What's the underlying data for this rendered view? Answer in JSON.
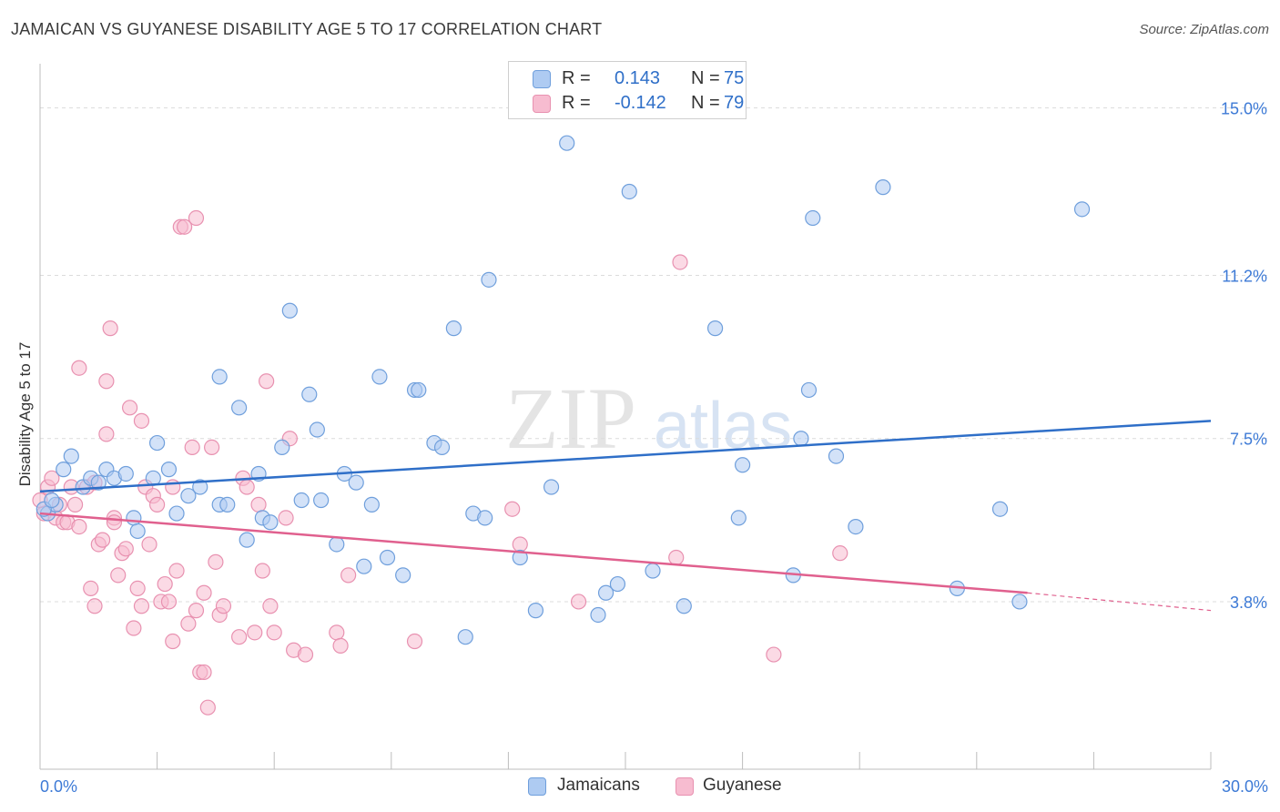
{
  "header": {
    "title": "JAMAICAN VS GUYANESE DISABILITY AGE 5 TO 17 CORRELATION CHART",
    "source": "Source: ZipAtlas.com"
  },
  "watermark": {
    "zip": "ZIP",
    "atlas": "atlas"
  },
  "legend": {
    "items": [
      {
        "r_label": "R =",
        "r_value": "0.143",
        "n_label": "N =",
        "n_value": "75",
        "color": "#aecbf2"
      },
      {
        "r_label": "R =",
        "r_value": "-0.142",
        "n_label": "N =",
        "n_value": "79",
        "color": "#f7bcd0"
      }
    ]
  },
  "colors": {
    "jamaicans_fill": "#aecbf2",
    "jamaicans_stroke": "#6f9fdc",
    "jamaicans_line": "#2f6fc8",
    "guyanese_fill": "#f7bcd0",
    "guyanese_stroke": "#e891b0",
    "guyanese_line": "#e0608e",
    "tick_label": "#3d7ad6"
  },
  "chart_data": {
    "type": "scatter",
    "title": "JAMAICAN VS GUYANESE DISABILITY AGE 5 TO 17 CORRELATION CHART",
    "xlabel": "",
    "ylabel": "Disability Age 5 to 17",
    "xlim": [
      0,
      30
    ],
    "ylim": [
      0,
      16.0
    ],
    "x_tick_labels": [
      "0.0%",
      "30.0%"
    ],
    "y_ticks": [
      3.8,
      7.5,
      11.2,
      15.0
    ],
    "y_tick_labels": [
      "3.8%",
      "7.5%",
      "11.2%",
      "15.0%"
    ],
    "grid": "horizontal dashed",
    "legend_position": "top-center",
    "series": [
      {
        "name": "Jamaicans",
        "r": 0.143,
        "n": 75,
        "trend": {
          "x": [
            0,
            30
          ],
          "y": [
            6.3,
            7.9
          ]
        },
        "points": [
          [
            0.2,
            5.8
          ],
          [
            0.4,
            6.0
          ],
          [
            0.6,
            6.8
          ],
          [
            0.8,
            7.1
          ],
          [
            1.1,
            6.4
          ],
          [
            1.3,
            6.6
          ],
          [
            1.5,
            6.5
          ],
          [
            1.7,
            6.8
          ],
          [
            1.9,
            6.6
          ],
          [
            2.2,
            6.7
          ],
          [
            2.4,
            5.7
          ],
          [
            2.5,
            5.4
          ],
          [
            2.9,
            6.6
          ],
          [
            3.0,
            7.4
          ],
          [
            3.3,
            6.8
          ],
          [
            3.5,
            5.8
          ],
          [
            3.8,
            6.2
          ],
          [
            4.1,
            6.4
          ],
          [
            4.6,
            6.0
          ],
          [
            4.6,
            8.9
          ],
          [
            4.8,
            6.0
          ],
          [
            5.1,
            8.2
          ],
          [
            5.3,
            5.2
          ],
          [
            5.6,
            6.7
          ],
          [
            5.7,
            5.7
          ],
          [
            5.9,
            5.6
          ],
          [
            6.2,
            7.3
          ],
          [
            6.4,
            10.4
          ],
          [
            6.7,
            6.1
          ],
          [
            6.9,
            8.5
          ],
          [
            7.1,
            7.7
          ],
          [
            7.2,
            6.1
          ],
          [
            7.6,
            5.1
          ],
          [
            7.8,
            6.7
          ],
          [
            8.1,
            6.5
          ],
          [
            8.3,
            4.6
          ],
          [
            8.5,
            6.0
          ],
          [
            8.7,
            8.9
          ],
          [
            8.9,
            4.8
          ],
          [
            9.3,
            4.4
          ],
          [
            9.6,
            8.6
          ],
          [
            9.7,
            8.6
          ],
          [
            10.1,
            7.4
          ],
          [
            10.3,
            7.3
          ],
          [
            10.6,
            10.0
          ],
          [
            10.9,
            3.0
          ],
          [
            11.1,
            5.8
          ],
          [
            11.4,
            5.7
          ],
          [
            11.5,
            11.1
          ],
          [
            12.3,
            4.8
          ],
          [
            12.7,
            3.6
          ],
          [
            13.1,
            6.4
          ],
          [
            13.5,
            14.2
          ],
          [
            14.3,
            3.5
          ],
          [
            14.5,
            4.0
          ],
          [
            14.8,
            4.2
          ],
          [
            15.1,
            13.1
          ],
          [
            15.7,
            4.5
          ],
          [
            16.5,
            3.7
          ],
          [
            17.3,
            10.0
          ],
          [
            17.9,
            5.7
          ],
          [
            18.0,
            6.9
          ],
          [
            19.3,
            4.4
          ],
          [
            19.5,
            7.5
          ],
          [
            19.7,
            8.6
          ],
          [
            19.8,
            12.5
          ],
          [
            20.4,
            7.1
          ],
          [
            20.9,
            5.5
          ],
          [
            21.6,
            13.2
          ],
          [
            23.5,
            4.1
          ],
          [
            24.6,
            5.9
          ],
          [
            25.1,
            3.8
          ],
          [
            26.7,
            12.7
          ],
          [
            0.1,
            5.9
          ],
          [
            0.3,
            6.1
          ]
        ]
      },
      {
        "name": "Guyanese",
        "r": -0.142,
        "n": 79,
        "trend": {
          "x": [
            0,
            25.3
          ],
          "y": [
            5.8,
            4.0
          ]
        },
        "trend_dashed": {
          "x": [
            25.3,
            30
          ],
          "y": [
            4.0,
            3.6
          ]
        },
        "points": [
          [
            0.1,
            5.8
          ],
          [
            0.2,
            6.4
          ],
          [
            0.3,
            6.6
          ],
          [
            0.4,
            5.7
          ],
          [
            0.5,
            6.0
          ],
          [
            0.6,
            5.6
          ],
          [
            0.7,
            5.6
          ],
          [
            0.8,
            6.4
          ],
          [
            0.9,
            6.0
          ],
          [
            1.0,
            9.1
          ],
          [
            1.0,
            5.5
          ],
          [
            1.2,
            6.4
          ],
          [
            1.3,
            4.1
          ],
          [
            1.4,
            6.5
          ],
          [
            1.4,
            3.7
          ],
          [
            1.5,
            5.1
          ],
          [
            1.6,
            5.2
          ],
          [
            1.7,
            7.6
          ],
          [
            1.7,
            8.8
          ],
          [
            1.8,
            10.0
          ],
          [
            1.9,
            5.7
          ],
          [
            1.9,
            5.6
          ],
          [
            2.0,
            4.4
          ],
          [
            2.1,
            4.9
          ],
          [
            2.2,
            5.0
          ],
          [
            2.3,
            8.2
          ],
          [
            2.4,
            3.2
          ],
          [
            2.5,
            4.1
          ],
          [
            2.6,
            7.9
          ],
          [
            2.6,
            3.7
          ],
          [
            2.7,
            6.4
          ],
          [
            2.8,
            5.1
          ],
          [
            2.9,
            6.2
          ],
          [
            3.0,
            6.0
          ],
          [
            3.1,
            3.8
          ],
          [
            3.2,
            4.2
          ],
          [
            3.3,
            3.8
          ],
          [
            3.4,
            2.9
          ],
          [
            3.4,
            6.4
          ],
          [
            3.5,
            4.5
          ],
          [
            3.6,
            12.3
          ],
          [
            3.7,
            12.3
          ],
          [
            3.8,
            3.3
          ],
          [
            3.9,
            7.3
          ],
          [
            4.0,
            3.6
          ],
          [
            4.0,
            12.5
          ],
          [
            4.1,
            2.2
          ],
          [
            4.2,
            2.2
          ],
          [
            4.2,
            4.0
          ],
          [
            4.3,
            1.4
          ],
          [
            4.4,
            7.3
          ],
          [
            4.5,
            4.7
          ],
          [
            4.6,
            3.5
          ],
          [
            4.7,
            3.7
          ],
          [
            5.1,
            3.0
          ],
          [
            5.2,
            6.6
          ],
          [
            5.3,
            6.4
          ],
          [
            5.5,
            3.1
          ],
          [
            5.6,
            6.0
          ],
          [
            5.7,
            4.5
          ],
          [
            5.8,
            8.8
          ],
          [
            5.9,
            3.7
          ],
          [
            6.0,
            3.1
          ],
          [
            6.3,
            5.7
          ],
          [
            6.4,
            7.5
          ],
          [
            6.5,
            2.7
          ],
          [
            6.8,
            2.6
          ],
          [
            7.6,
            3.1
          ],
          [
            7.7,
            2.8
          ],
          [
            7.9,
            4.4
          ],
          [
            9.6,
            2.9
          ],
          [
            12.1,
            5.9
          ],
          [
            12.3,
            5.1
          ],
          [
            13.8,
            3.8
          ],
          [
            16.3,
            4.8
          ],
          [
            16.4,
            11.5
          ],
          [
            18.8,
            2.6
          ],
          [
            20.5,
            4.9
          ],
          [
            0.0,
            6.1
          ]
        ]
      }
    ]
  },
  "bottom_legend": {
    "items": [
      "Jamaicans",
      "Guyanese"
    ]
  }
}
